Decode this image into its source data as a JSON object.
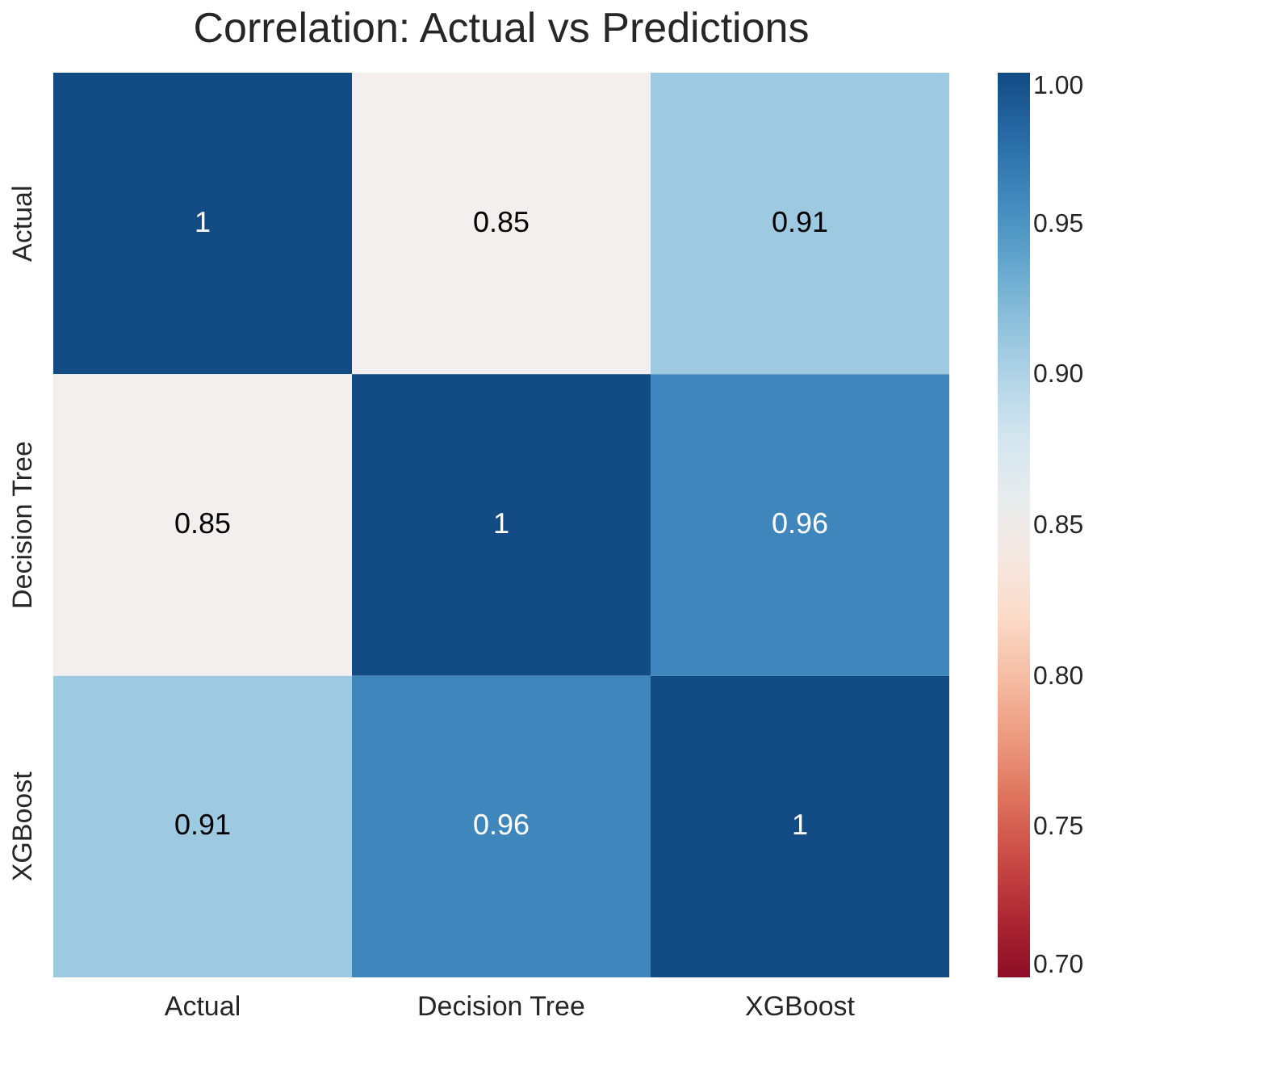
{
  "chart_data": {
    "type": "heatmap",
    "title": "Correlation: Actual vs Predictions",
    "categories": [
      "Actual",
      "Decision Tree",
      "XGBoost"
    ],
    "y_categories": [
      "Actual",
      "Decision Tree",
      "XGBoost"
    ],
    "cells": [
      [
        1,
        0.85,
        0.91
      ],
      [
        0.85,
        1,
        0.96
      ],
      [
        0.91,
        0.96,
        1
      ]
    ],
    "clim": [
      0.7,
      1.0
    ],
    "cticks": [
      {
        "value": 0.7,
        "label": "0.70"
      },
      {
        "value": 0.75,
        "label": "0.75"
      },
      {
        "value": 0.8,
        "label": "0.80"
      },
      {
        "value": 0.85,
        "label": "0.85"
      },
      {
        "value": 0.9,
        "label": "0.90"
      },
      {
        "value": 0.95,
        "label": "0.95"
      },
      {
        "value": 1.0,
        "label": "1.00"
      }
    ],
    "data_labels": true
  }
}
